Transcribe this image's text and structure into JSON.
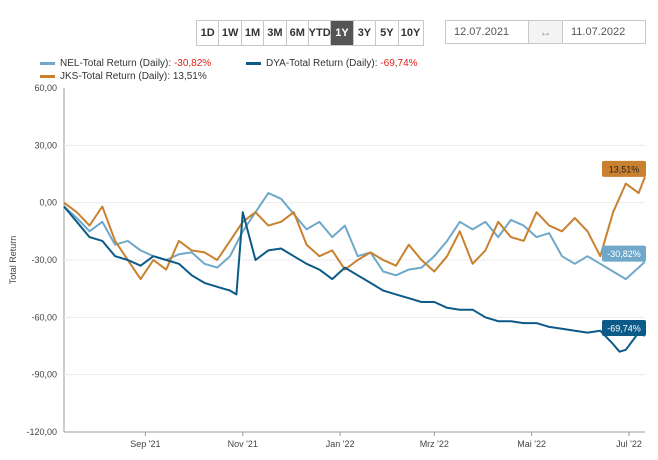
{
  "toolbar": {
    "ranges": [
      "1D",
      "1W",
      "1M",
      "3M",
      "6M",
      "YTD",
      "1Y",
      "3Y",
      "5Y",
      "10Y"
    ],
    "active_range": "1Y",
    "date_from": "12.07.2021",
    "date_separator": "↔",
    "date_to": "11.07.2022"
  },
  "legend": [
    {
      "label": "NEL-Total Return (Daily):",
      "value": "-30,82%",
      "color": "#6fa8c8"
    },
    {
      "label": "DYA-Total Return (Daily):",
      "value": "-69,74%",
      "color": "#0b5a87"
    },
    {
      "label": "JKS-Total Return (Daily):",
      "value": "13,51%",
      "color": "#c98130"
    }
  ],
  "chart_data": {
    "type": "line",
    "ylabel": "Total Return",
    "ylim": [
      -120,
      60
    ],
    "yticks": [
      "60,00",
      "30,00",
      "0,00",
      "-30,00",
      "-60,00",
      "-90,00",
      "-120,00"
    ],
    "xticks": [
      "Sep '21",
      "Nov '21",
      "Jan '22",
      "Mrz '22",
      "Mai '22",
      "Jul '22"
    ],
    "xlim": [
      "2021-07-12",
      "2022-07-11"
    ],
    "xtick_dates": [
      "2021-09-01",
      "2021-11-01",
      "2022-01-01",
      "2022-03-01",
      "2022-05-01",
      "2022-07-01"
    ],
    "series": [
      {
        "name": "NEL-Total Return (Daily)",
        "color": "#6fa8c8",
        "end_label": "-30,82%",
        "x": [
          "2021-07-12",
          "2021-07-20",
          "2021-07-28",
          "2021-08-05",
          "2021-08-13",
          "2021-08-21",
          "2021-08-29",
          "2021-09-06",
          "2021-09-14",
          "2021-09-22",
          "2021-09-30",
          "2021-10-08",
          "2021-10-16",
          "2021-10-24",
          "2021-11-01",
          "2021-11-09",
          "2021-11-17",
          "2021-11-25",
          "2021-12-03",
          "2021-12-11",
          "2021-12-19",
          "2021-12-27",
          "2022-01-04",
          "2022-01-12",
          "2022-01-20",
          "2022-01-28",
          "2022-02-05",
          "2022-02-13",
          "2022-02-21",
          "2022-03-01",
          "2022-03-09",
          "2022-03-17",
          "2022-03-25",
          "2022-04-02",
          "2022-04-10",
          "2022-04-18",
          "2022-04-26",
          "2022-05-04",
          "2022-05-12",
          "2022-05-20",
          "2022-05-28",
          "2022-06-05",
          "2022-06-13",
          "2022-06-21",
          "2022-06-29",
          "2022-07-07",
          "2022-07-11"
        ],
        "y": [
          -2,
          -8,
          -15,
          -10,
          -22,
          -20,
          -25,
          -28,
          -30,
          -27,
          -26,
          -32,
          -34,
          -28,
          -15,
          -5,
          5,
          2,
          -6,
          -14,
          -10,
          -18,
          -12,
          -28,
          -26,
          -36,
          -38,
          -35,
          -34,
          -28,
          -20,
          -10,
          -14,
          -10,
          -18,
          -9,
          -12,
          -18,
          -16,
          -28,
          -32,
          -28,
          -32,
          -36,
          -40,
          -34,
          -30.82
        ]
      },
      {
        "name": "DYA-Total Return (Daily)",
        "color": "#0b5a87",
        "end_label": "-69,74%",
        "x": [
          "2021-07-12",
          "2021-07-20",
          "2021-07-28",
          "2021-08-05",
          "2021-08-13",
          "2021-08-21",
          "2021-08-29",
          "2021-09-06",
          "2021-09-14",
          "2021-09-22",
          "2021-09-30",
          "2021-10-08",
          "2021-10-16",
          "2021-10-24",
          "2021-10-28",
          "2021-11-01",
          "2021-11-09",
          "2021-11-17",
          "2021-11-25",
          "2021-12-03",
          "2021-12-11",
          "2021-12-19",
          "2021-12-27",
          "2022-01-04",
          "2022-01-12",
          "2022-01-20",
          "2022-01-28",
          "2022-02-05",
          "2022-02-13",
          "2022-02-21",
          "2022-03-01",
          "2022-03-09",
          "2022-03-17",
          "2022-03-25",
          "2022-04-02",
          "2022-04-10",
          "2022-04-18",
          "2022-04-26",
          "2022-05-04",
          "2022-05-12",
          "2022-05-20",
          "2022-05-28",
          "2022-06-05",
          "2022-06-13",
          "2022-06-21",
          "2022-06-25",
          "2022-06-29",
          "2022-07-07",
          "2022-07-11"
        ],
        "y": [
          -2,
          -10,
          -18,
          -20,
          -28,
          -30,
          -33,
          -28,
          -30,
          -32,
          -38,
          -42,
          -44,
          -46,
          -48,
          -5,
          -30,
          -25,
          -24,
          -28,
          -32,
          -35,
          -40,
          -34,
          -38,
          -42,
          -46,
          -48,
          -50,
          -52,
          -52,
          -55,
          -56,
          -56,
          -60,
          -62,
          -62,
          -63,
          -63,
          -65,
          -66,
          -67,
          -68,
          -67,
          -74,
          -78,
          -77,
          -68,
          -69.74
        ]
      },
      {
        "name": "JKS-Total Return (Daily)",
        "color": "#c98130",
        "end_label": "13,51%",
        "x": [
          "2021-07-12",
          "2021-07-20",
          "2021-07-28",
          "2021-08-05",
          "2021-08-13",
          "2021-08-21",
          "2021-08-29",
          "2021-09-06",
          "2021-09-14",
          "2021-09-22",
          "2021-09-30",
          "2021-10-08",
          "2021-10-16",
          "2021-10-24",
          "2021-11-01",
          "2021-11-09",
          "2021-11-17",
          "2021-11-25",
          "2021-12-03",
          "2021-12-11",
          "2021-12-19",
          "2021-12-27",
          "2022-01-04",
          "2022-01-12",
          "2022-01-20",
          "2022-01-28",
          "2022-02-05",
          "2022-02-13",
          "2022-02-21",
          "2022-03-01",
          "2022-03-09",
          "2022-03-17",
          "2022-03-25",
          "2022-04-02",
          "2022-04-10",
          "2022-04-18",
          "2022-04-26",
          "2022-05-04",
          "2022-05-12",
          "2022-05-20",
          "2022-05-28",
          "2022-06-05",
          "2022-06-13",
          "2022-06-21",
          "2022-06-29",
          "2022-07-07",
          "2022-07-11"
        ],
        "y": [
          0,
          -5,
          -12,
          -2,
          -20,
          -30,
          -40,
          -30,
          -35,
          -20,
          -25,
          -26,
          -30,
          -20,
          -10,
          -5,
          -12,
          -10,
          -5,
          -22,
          -28,
          -25,
          -35,
          -30,
          -26,
          -30,
          -33,
          -22,
          -30,
          -36,
          -28,
          -15,
          -32,
          -25,
          -10,
          -18,
          -20,
          -5,
          -12,
          -15,
          -8,
          -15,
          -28,
          -5,
          10,
          5,
          13.51
        ]
      }
    ]
  }
}
